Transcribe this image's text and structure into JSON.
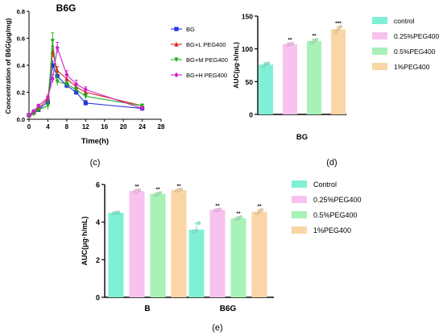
{
  "chart_data": [
    {
      "type": "line",
      "title": "B6G",
      "xlabel": "Time(h)",
      "ylabel": "Concentration of B6G(μg/mg)",
      "xlim": [
        0,
        28
      ],
      "ylim": [
        0,
        0.8
      ],
      "xticks": [
        0,
        4,
        8,
        12,
        16,
        20,
        24,
        28
      ],
      "yticks": [
        0.0,
        0.2,
        0.4,
        0.6,
        0.8
      ],
      "ytick_labels": [
        "0.0",
        "0.2",
        "0.4",
        "0.6",
        "0.8"
      ],
      "legend": "right",
      "caption": "(c)",
      "series": [
        {
          "name": "BG",
          "color": "#2233dd",
          "marker": "square",
          "x": [
            0,
            1,
            2,
            4,
            5,
            6,
            8,
            10,
            12,
            24
          ],
          "y": [
            0.03,
            0.05,
            0.07,
            0.13,
            0.4,
            0.32,
            0.25,
            0.2,
            0.12,
            0.08
          ],
          "err": [
            0.01,
            0.01,
            0.01,
            0.02,
            0.03,
            0.03,
            0.02,
            0.02,
            0.02,
            0.01
          ]
        },
        {
          "name": "BG+L PEG400",
          "color": "#dd2222",
          "marker": "triangle",
          "x": [
            0,
            1,
            2,
            4,
            5,
            6,
            8,
            10,
            12,
            24
          ],
          "y": [
            0.03,
            0.05,
            0.08,
            0.15,
            0.5,
            0.36,
            0.3,
            0.24,
            0.2,
            0.1
          ],
          "err": [
            0.01,
            0.01,
            0.01,
            0.02,
            0.04,
            0.03,
            0.03,
            0.02,
            0.02,
            0.01
          ]
        },
        {
          "name": "BG+M PEG400",
          "color": "#22aa22",
          "marker": "triangle-down",
          "x": [
            0,
            1,
            2,
            4,
            5,
            6,
            8,
            10,
            12,
            24
          ],
          "y": [
            0.02,
            0.04,
            0.07,
            0.1,
            0.58,
            0.28,
            0.26,
            0.22,
            0.17,
            0.1
          ],
          "err": [
            0.01,
            0.01,
            0.01,
            0.03,
            0.06,
            0.03,
            0.02,
            0.02,
            0.02,
            0.01
          ]
        },
        {
          "name": "BG+H PEG400",
          "color": "#cc22cc",
          "marker": "diamond",
          "x": [
            0,
            1,
            2,
            4,
            5,
            6,
            8,
            10,
            12,
            24
          ],
          "y": [
            0.03,
            0.06,
            0.1,
            0.16,
            0.3,
            0.53,
            0.33,
            0.26,
            0.22,
            0.08
          ],
          "err": [
            0.01,
            0.01,
            0.01,
            0.02,
            0.03,
            0.04,
            0.03,
            0.03,
            0.02,
            0.01
          ]
        }
      ]
    },
    {
      "type": "bar",
      "title": "",
      "xlabel": "BG",
      "ylabel": "AUC(μg·h/mL)",
      "ylim": [
        0,
        150
      ],
      "yticks": [
        0,
        50,
        100,
        150
      ],
      "caption": "(d)",
      "legend": "right",
      "categories": [
        "BG"
      ],
      "series": [
        {
          "name": "control",
          "color": "#7ff0d6",
          "values": [
            76
          ],
          "err": [
            2
          ],
          "points": [
            74,
            77,
            78
          ],
          "sig": ""
        },
        {
          "name": "0.25%PEG400",
          "color": "#f8c2ee",
          "values": [
            107
          ],
          "err": [
            2
          ],
          "points": [
            106,
            107,
            108
          ],
          "sig": "**"
        },
        {
          "name": "0.5%PEG400",
          "color": "#a8f2b8",
          "values": [
            112
          ],
          "err": [
            3
          ],
          "points": [
            109,
            112,
            114
          ],
          "sig": "**"
        },
        {
          "name": "1%PEG400",
          "color": "#fad6a6",
          "values": [
            130
          ],
          "err": [
            4
          ],
          "points": [
            126,
            130,
            134
          ],
          "sig": "***"
        }
      ]
    },
    {
      "type": "bar",
      "title": "",
      "xlabel": "",
      "ylabel": "AUC(μg·h/mL)",
      "ylim": [
        0,
        6
      ],
      "yticks": [
        0,
        2,
        4,
        6
      ],
      "caption": "(e)",
      "legend": "right",
      "categories": [
        "B",
        "B6G"
      ],
      "series": [
        {
          "name": "Control",
          "color": "#7ff0d6",
          "values": [
            4.5,
            3.6
          ],
          "err": [
            0.03,
            0.35
          ],
          "points": [
            [
              4.47,
              4.5,
              4.52
            ],
            [
              3.5,
              3.55,
              3.95
            ]
          ],
          "sig": [
            "",
            ""
          ]
        },
        {
          "name": "0.25%PEG400",
          "color": "#f8c2ee",
          "values": [
            5.65,
            4.65
          ],
          "err": [
            0.08,
            0.05
          ],
          "points": [
            [
              5.6,
              5.65,
              5.7
            ],
            [
              4.62,
              4.65,
              4.68
            ]
          ],
          "sig": [
            "**",
            "**"
          ]
        },
        {
          "name": "0.5%PEG400",
          "color": "#a8f2b8",
          "values": [
            5.5,
            4.2
          ],
          "err": [
            0.07,
            0.08
          ],
          "points": [
            [
              5.45,
              5.5,
              5.55
            ],
            [
              4.15,
              4.2,
              4.27
            ]
          ],
          "sig": [
            "**",
            "**"
          ]
        },
        {
          "name": "1%PEG400",
          "color": "#fad6a6",
          "values": [
            5.7,
            4.55
          ],
          "err": [
            0.05,
            0.12
          ],
          "points": [
            [
              5.66,
              5.7,
              5.74
            ],
            [
              4.45,
              4.55,
              4.65
            ]
          ],
          "sig": [
            "**",
            "**"
          ]
        }
      ]
    }
  ]
}
